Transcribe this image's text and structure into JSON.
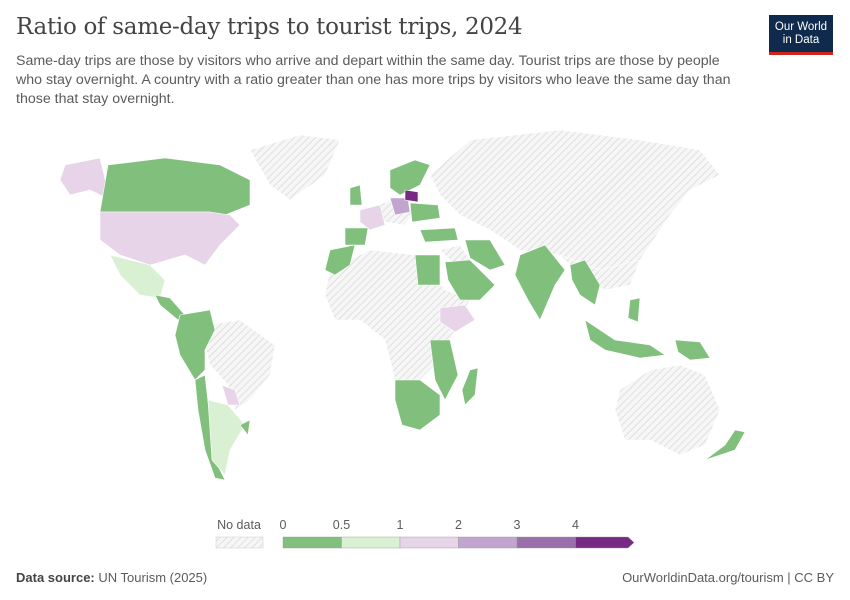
{
  "title": "Ratio of same-day trips to tourist trips, 2024",
  "subtitle": "Same-day trips are those by visitors who arrive and depart within the same day. Tourist trips are those by people who stay overnight. A country with a ratio greater than one has more trips by visitors who leave the same day than those that stay overnight.",
  "logo": {
    "line1": "Our World",
    "line2": "in Data"
  },
  "footer": {
    "source_label": "Data source:",
    "source": "UN Tourism (2025)",
    "url": "OurWorldinData.org/tourism | CC BY"
  },
  "chart_data": {
    "type": "choropleth",
    "legend": {
      "no_data_label": "No data",
      "ticks": [
        "0",
        "0.5",
        "1",
        "2",
        "3",
        "4"
      ],
      "bins": [
        {
          "range": [
            0,
            0.5
          ],
          "color": "#80bf7c"
        },
        {
          "range": [
            0.5,
            1
          ],
          "color": "#d9f0d3"
        },
        {
          "range": [
            1,
            2
          ],
          "color": "#e7d4e8"
        },
        {
          "range": [
            2,
            3
          ],
          "color": "#c2a5cf"
        },
        {
          "range": [
            3,
            4
          ],
          "color": "#9970ab"
        },
        {
          "range": [
            4,
            null
          ],
          "color": "#762a83"
        }
      ],
      "no_data_color": "hatched-gray"
    },
    "regions": [
      {
        "name": "Canada",
        "bin": "0-0.5"
      },
      {
        "name": "Alaska (USA)",
        "bin": "1-2"
      },
      {
        "name": "United States",
        "bin": "1-2"
      },
      {
        "name": "Mexico",
        "bin": "0.5-1"
      },
      {
        "name": "Central America",
        "bin": "0-0.5"
      },
      {
        "name": "Colombia / Venezuela / Ecuador / Peru",
        "bin": "0-0.5"
      },
      {
        "name": "Chile",
        "bin": "0-0.5"
      },
      {
        "name": "Paraguay",
        "bin": "1-2"
      },
      {
        "name": "Argentina",
        "bin": "0.5-1"
      },
      {
        "name": "Uruguay",
        "bin": "0-0.5"
      },
      {
        "name": "France",
        "bin": "1-2"
      },
      {
        "name": "Spain / Portugal",
        "bin": "0-0.5"
      },
      {
        "name": "United Kingdom / Ireland",
        "bin": "0-0.5"
      },
      {
        "name": "Scandinavia",
        "bin": "0-0.5"
      },
      {
        "name": "Poland / Czechia",
        "bin": "2-3"
      },
      {
        "name": "Belarus",
        "bin": "4+"
      },
      {
        "name": "Ukraine / Romania",
        "bin": "0-0.5"
      },
      {
        "name": "Turkey",
        "bin": "0-0.5"
      },
      {
        "name": "Morocco",
        "bin": "0-0.5"
      },
      {
        "name": "Egypt",
        "bin": "0-0.5"
      },
      {
        "name": "Saudi Arabia / Oman",
        "bin": "0-0.5"
      },
      {
        "name": "Iran",
        "bin": "0-0.5"
      },
      {
        "name": "Ethiopia",
        "bin": "1-2"
      },
      {
        "name": "Tanzania / Mozambique / Malawi",
        "bin": "0-0.5"
      },
      {
        "name": "Southern Africa",
        "bin": "0-0.5"
      },
      {
        "name": "Madagascar",
        "bin": "0-0.5"
      },
      {
        "name": "India",
        "bin": "0-0.5"
      },
      {
        "name": "Myanmar / Thailand / Cambodia",
        "bin": "0-0.5"
      },
      {
        "name": "Philippines",
        "bin": "0-0.5"
      },
      {
        "name": "Indonesia",
        "bin": "0-0.5"
      },
      {
        "name": "Papua New Guinea",
        "bin": "0-0.5"
      },
      {
        "name": "New Zealand",
        "bin": "0-0.5"
      }
    ]
  }
}
